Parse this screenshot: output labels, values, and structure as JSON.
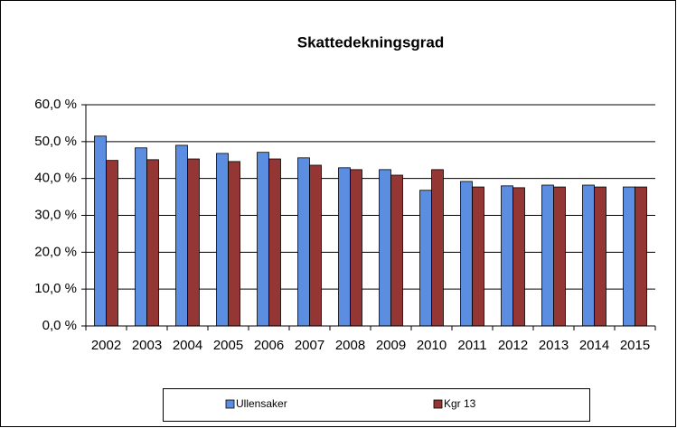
{
  "chart_data": {
    "type": "bar",
    "title": "Skattedekningsgrad",
    "categories": [
      "2002",
      "2003",
      "2004",
      "2005",
      "2006",
      "2007",
      "2008",
      "2009",
      "2010",
      "2011",
      "2012",
      "2013",
      "2014",
      "2015"
    ],
    "series": [
      {
        "name": "Ullensaker",
        "color": "#5b8ee0",
        "values": [
          51.5,
          48.3,
          49.0,
          46.8,
          47.1,
          45.6,
          42.9,
          42.4,
          36.8,
          39.2,
          38.0,
          38.2,
          38.2,
          37.7
        ]
      },
      {
        "name": "Kgr 13",
        "color": "#943634",
        "values": [
          44.9,
          45.1,
          45.3,
          44.6,
          45.3,
          43.6,
          42.4,
          40.9,
          42.4,
          37.7,
          37.5,
          37.7,
          37.7,
          37.7
        ]
      }
    ],
    "ylim": [
      0,
      60
    ],
    "yticks": [
      {
        "value": 0,
        "label": "0,0 %"
      },
      {
        "value": 10,
        "label": "10,0 %"
      },
      {
        "value": 20,
        "label": "20,0 %"
      },
      {
        "value": 30,
        "label": "30,0 %"
      },
      {
        "value": 40,
        "label": "40,0 %"
      },
      {
        "value": 50,
        "label": "50,0 %"
      },
      {
        "value": 60,
        "label": "60,0 %"
      }
    ],
    "grid": true,
    "legend": "bottom"
  }
}
